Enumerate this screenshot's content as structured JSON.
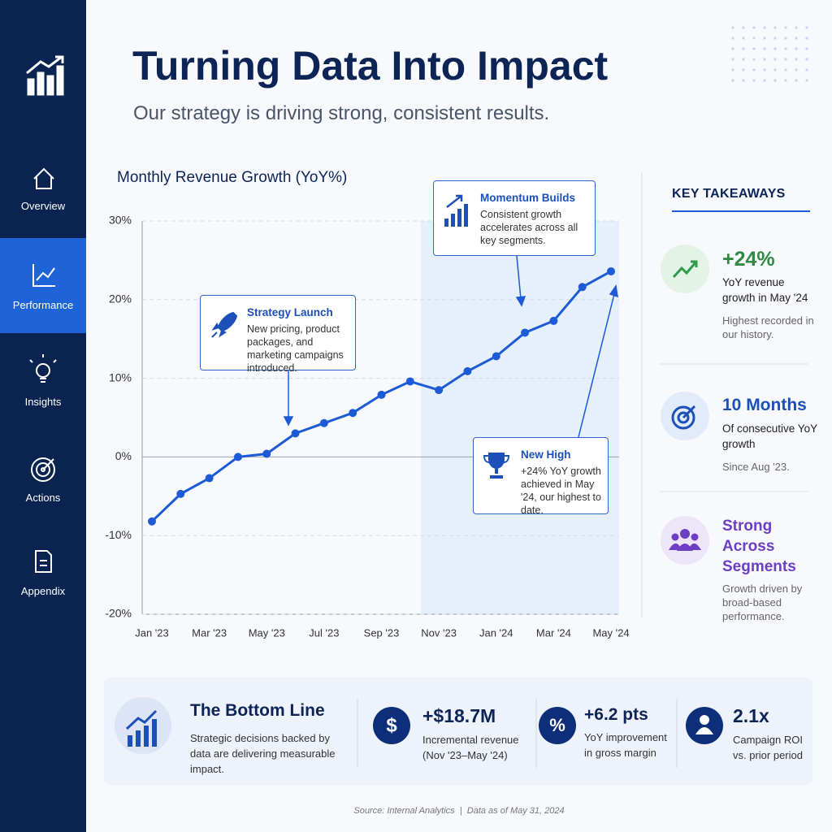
{
  "sidebar": {
    "items": [
      {
        "label": "Overview"
      },
      {
        "label": "Performance"
      },
      {
        "label": "Insights"
      },
      {
        "label": "Actions"
      },
      {
        "label": "Appendix"
      }
    ]
  },
  "header": {
    "title": "Turning Data Into Impact",
    "subtitle": "Our strategy is driving strong, consistent results."
  },
  "chart_data": {
    "type": "line",
    "title": "Monthly Revenue Growth (YoY%)",
    "categories": [
      "Jan '23",
      null,
      "Mar '23",
      null,
      "May '23",
      null,
      "Jul '23",
      null,
      "Sep '23",
      null,
      "Nov '23",
      null,
      "Jan '24",
      null,
      "Mar '24",
      null,
      "May '24"
    ],
    "values": [
      -8.2,
      -4.7,
      -2.7,
      0,
      0.4,
      3.0,
      4.3,
      5.6,
      7.9,
      9.6,
      8.5,
      10.9,
      12.8,
      15.8,
      17.3,
      21.6,
      23.6
    ],
    "color": "#1d5bd6",
    "ylim": [
      -20,
      30
    ],
    "yticks": [
      {
        "value": 30,
        "label": "30%"
      },
      {
        "value": 20,
        "label": "20%"
      },
      {
        "value": 10,
        "label": "10%"
      },
      {
        "value": 0,
        "label": "0%"
      },
      {
        "value": -10,
        "label": "-10%"
      },
      {
        "value": -20,
        "label": "-20%"
      }
    ],
    "grid": true,
    "annotations": [
      {
        "title": "Strategy Launch",
        "text": "New pricing, product packages, and marketing campaigns introduced."
      },
      {
        "title": "Momentum Builds",
        "text": "Consistent growth accelerates across all key segments."
      },
      {
        "title": "New High",
        "text": "+24% YoY growth achieved in May '24, our highest to date."
      }
    ]
  },
  "takeaways": {
    "title": "KEY TAKEAWAYS",
    "items": [
      {
        "headline": "+24%",
        "label": "YoY revenue growth in May '24",
        "note": "Highest recorded in our history."
      },
      {
        "headline": "10 Months",
        "label": "Of consecutive YoY growth",
        "note": "Since Aug '23."
      },
      {
        "headline": "Strong Across Segments",
        "note": "Growth driven by broad-based performance."
      }
    ]
  },
  "bottom_line": {
    "title": "The Bottom Line",
    "text": "Strategic decisions backed by data are delivering measurable impact.",
    "metrics": [
      {
        "icon": "$",
        "value": "+$18.7M",
        "label": "Incremental revenue (Nov '23–May '24)"
      },
      {
        "icon": "%",
        "value": "+6.2 pts",
        "label": "YoY improvement in gross margin"
      },
      {
        "value": "2.1x",
        "label": "Campaign ROI vs. prior period"
      }
    ]
  },
  "source": "Source: Internal Analytics  |  Data as of May 31, 2024"
}
